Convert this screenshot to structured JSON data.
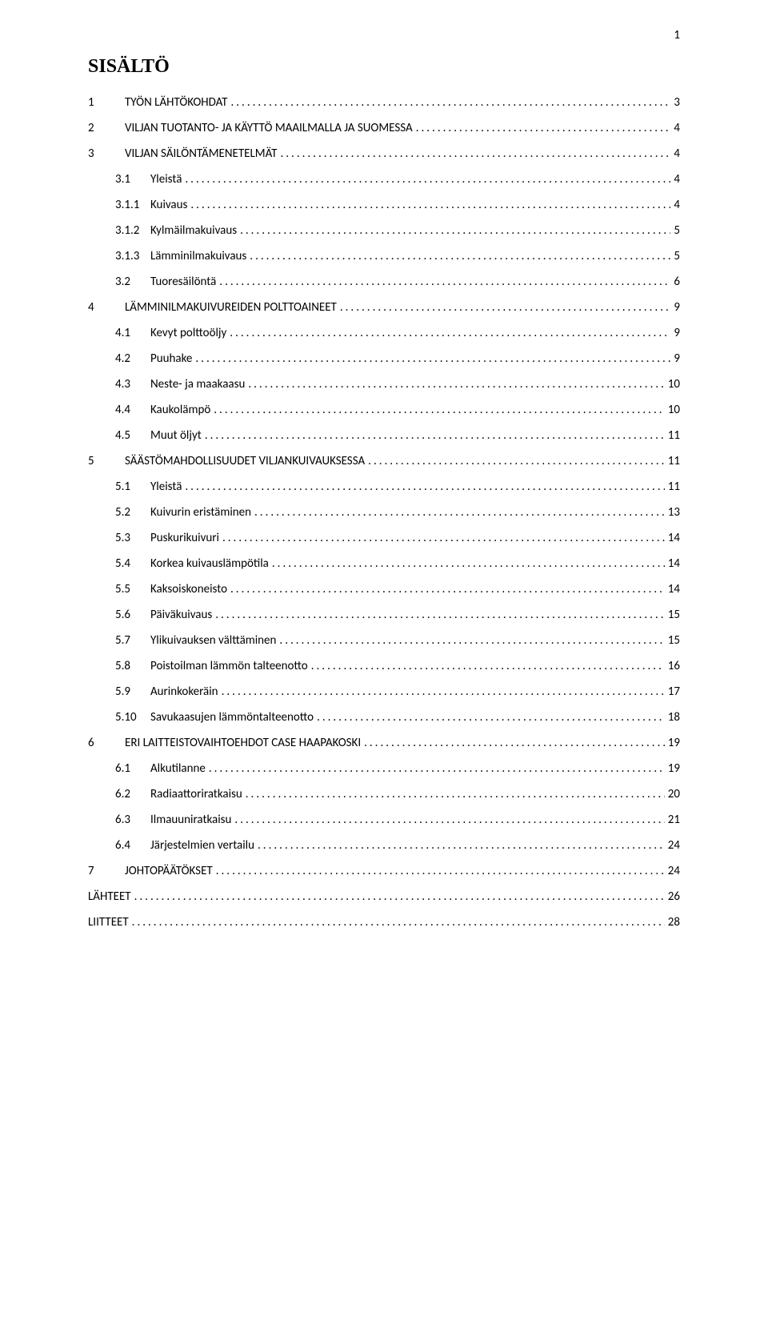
{
  "page_number": "1",
  "title": "SISÄLTÖ",
  "toc": [
    {
      "indent": 0,
      "num": "1",
      "label": "TYÖN LÄHTÖKOHDAT",
      "page": "3"
    },
    {
      "indent": 0,
      "num": "2",
      "label": "VILJAN TUOTANTO- JA KÄYTTÖ MAAILMALLA JA SUOMESSA",
      "page": "4"
    },
    {
      "indent": 0,
      "num": "3",
      "label": "VILJAN SÄILÖNTÄMENETELMÄT",
      "page": "4"
    },
    {
      "indent": 1,
      "num": "3.1",
      "label": "Yleistä",
      "page": "4"
    },
    {
      "indent": 1,
      "num": "3.1.1",
      "label": "Kuivaus",
      "page": "4"
    },
    {
      "indent": 1,
      "num": "3.1.2",
      "label": "Kylmäilmakuivaus",
      "page": "5"
    },
    {
      "indent": 1,
      "num": "3.1.3",
      "label": "Lämminilmakuivaus",
      "page": "5"
    },
    {
      "indent": 1,
      "num": "3.2",
      "label": "Tuoresäilöntä",
      "page": "6"
    },
    {
      "indent": 0,
      "num": "4",
      "label": "LÄMMINILMAKUIVUREIDEN POLTTOAINEET",
      "page": "9"
    },
    {
      "indent": 1,
      "num": "4.1",
      "label": "Kevyt polttoöljy",
      "page": "9"
    },
    {
      "indent": 1,
      "num": "4.2",
      "label": "Puuhake",
      "page": "9"
    },
    {
      "indent": 1,
      "num": "4.3",
      "label": "Neste- ja maakaasu",
      "page": "10"
    },
    {
      "indent": 1,
      "num": "4.4",
      "label": "Kaukolämpö",
      "page": "10"
    },
    {
      "indent": 1,
      "num": "4.5",
      "label": "Muut öljyt",
      "page": "11"
    },
    {
      "indent": 0,
      "num": "5",
      "label": "SÄÄSTÖMAHDOLLISUUDET VILJANKUIVAUKSESSA",
      "page": "11"
    },
    {
      "indent": 1,
      "num": "5.1",
      "label": "Yleistä",
      "page": "11"
    },
    {
      "indent": 1,
      "num": "5.2",
      "label": "Kuivurin eristäminen",
      "page": "13"
    },
    {
      "indent": 1,
      "num": "5.3",
      "label": "Puskurikuivuri",
      "page": "14"
    },
    {
      "indent": 1,
      "num": "5.4",
      "label": "Korkea kuivauslämpötila",
      "page": "14"
    },
    {
      "indent": 1,
      "num": "5.5",
      "label": "Kaksoiskoneisto",
      "page": "14"
    },
    {
      "indent": 1,
      "num": "5.6",
      "label": "Päiväkuivaus",
      "page": "15"
    },
    {
      "indent": 1,
      "num": "5.7",
      "label": "Ylikuivauksen välttäminen",
      "page": "15"
    },
    {
      "indent": 1,
      "num": "5.8",
      "label": "Poistoilman lämmön talteenotto",
      "page": "16"
    },
    {
      "indent": 1,
      "num": "5.9",
      "label": "Aurinkokeräin",
      "page": "17"
    },
    {
      "indent": 1,
      "num": "5.10",
      "label": "Savukaasujen lämmöntalteenotto",
      "page": "18"
    },
    {
      "indent": 0,
      "num": "6",
      "label": "ERI LAITTEISTOVAIHTOEHDOT CASE HAAPAKOSKI",
      "page": "19"
    },
    {
      "indent": 1,
      "num": "6.1",
      "label": "Alkutilanne",
      "page": "19"
    },
    {
      "indent": 1,
      "num": "6.2",
      "label": "Radiaattoriratkaisu",
      "page": "20"
    },
    {
      "indent": 1,
      "num": "6.3",
      "label": "Ilmauuniratkaisu",
      "page": "21"
    },
    {
      "indent": 1,
      "num": "6.4",
      "label": "Järjestelmien vertailu",
      "page": "24"
    },
    {
      "indent": 0,
      "num": "7",
      "label": "JOHTOPÄÄTÖKSET",
      "page": "24"
    },
    {
      "indent": 0,
      "num": "",
      "label": "LÄHTEET",
      "page": "26"
    },
    {
      "indent": 0,
      "num": "",
      "label": "LIITTEET",
      "page": "28"
    }
  ]
}
